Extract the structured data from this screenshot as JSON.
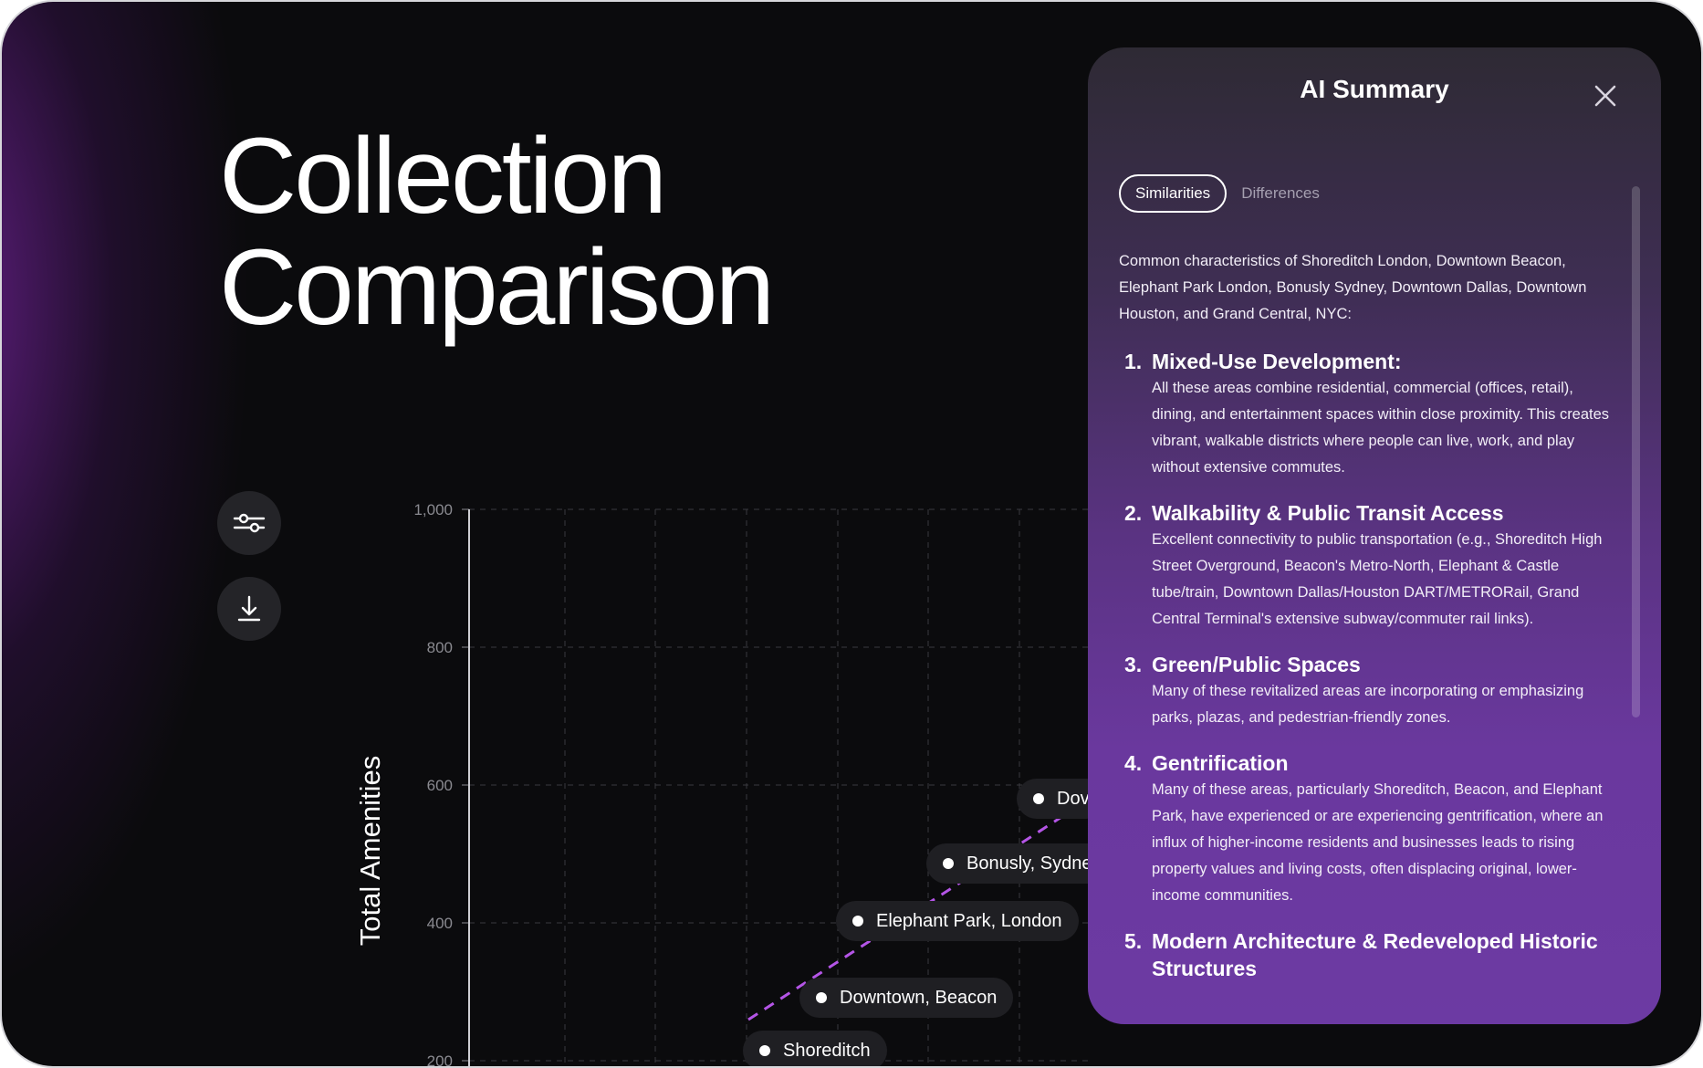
{
  "page": {
    "title_line1": "Collection",
    "title_line2": "Comparison"
  },
  "toolbar": {
    "filter_icon": "sliders-icon",
    "download_icon": "download-icon"
  },
  "chart_data": {
    "type": "scatter",
    "ylabel": "Total Amenities",
    "ylim": [
      200,
      1000
    ],
    "yticks": [
      "1,000",
      "800",
      "600",
      "400",
      "200"
    ],
    "grid": true,
    "trendline": {
      "style": "dashed",
      "color": "#b455e6"
    },
    "points": [
      {
        "label": "Shoreditch"
      },
      {
        "label": "Downtown, Beacon"
      },
      {
        "label": "Elephant Park, London"
      },
      {
        "label": "Bonusly, Sydne"
      },
      {
        "label": "Dov"
      }
    ]
  },
  "ai_summary": {
    "title": "AI Summary",
    "close_icon": "close-icon",
    "tabs": [
      {
        "label": "Similarities",
        "active": true
      },
      {
        "label": "Differences",
        "active": false
      }
    ],
    "intro": "Common characteristics of Shoreditch London, Downtown Beacon, Elephant Park London, Bonusly Sydney, Downtown Dallas, Downtown Houston, and Grand Central, NYC:",
    "items": [
      {
        "num": "1.",
        "title": "Mixed-Use Development:",
        "text": "All these areas combine residential, commercial (offices, retail), dining, and entertainment spaces within close proximity. This creates vibrant, walkable districts where people can live, work, and play without extensive commutes."
      },
      {
        "num": "2.",
        "title": "Walkability & Public Transit Access",
        "text": "Excellent connectivity to public transportation (e.g., Shoreditch High Street Overground, Beacon's Metro-North, Elephant & Castle tube/train, Downtown Dallas/Houston DART/METRORail, Grand Central Terminal's extensive subway/commuter rail links)."
      },
      {
        "num": "3.",
        "title": "Green/Public Spaces",
        "text": "Many of these revitalized areas are incorporating or emphasizing parks, plazas, and pedestrian-friendly zones."
      },
      {
        "num": "4.",
        "title": "Gentrification",
        "text": "Many of these areas, particularly Shoreditch, Beacon, and Elephant Park, have experienced or are experiencing gentrification, where an influx of higher-income residents and businesses leads to rising property values and living costs, often displacing original, lower-income communities."
      },
      {
        "num": "5.",
        "title": "Modern Architecture & Redeveloped Historic Structures",
        "text": ""
      }
    ]
  }
}
